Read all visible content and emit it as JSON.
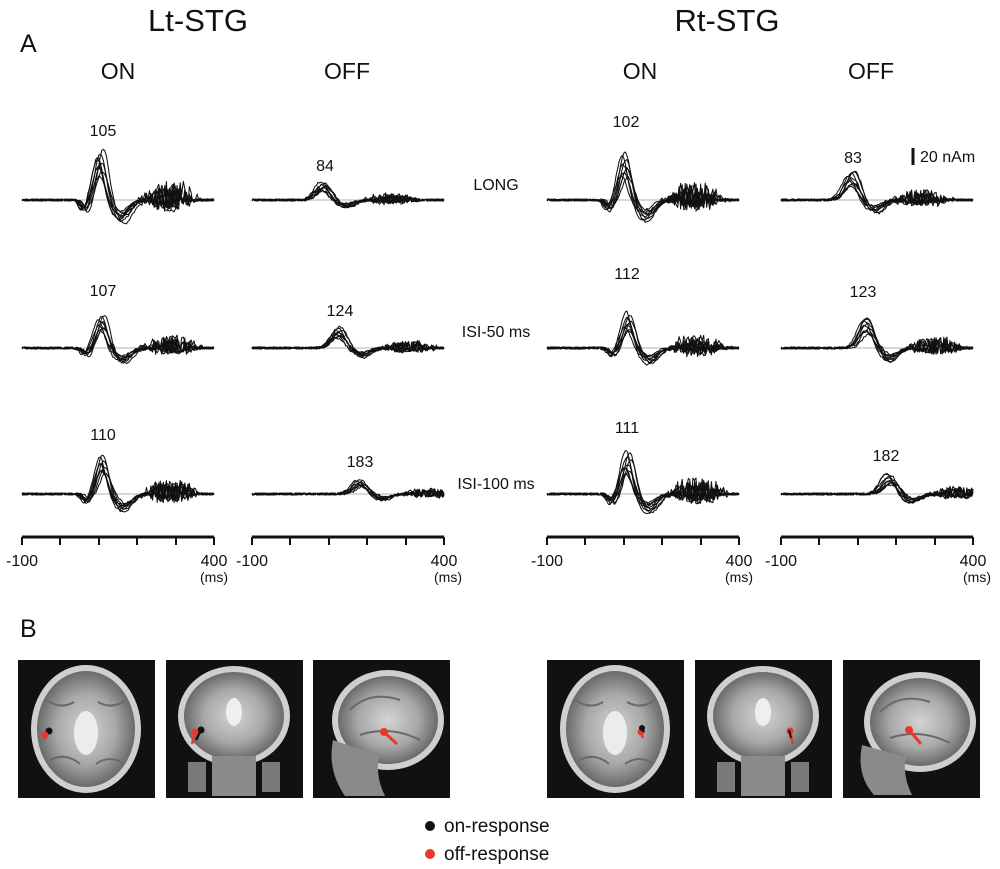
{
  "figure": {
    "panel_a_label": "A",
    "panel_b_label": "B",
    "scale_bar_label": "20 nAm",
    "axis_start_label": "-100",
    "axis_end_label": "400",
    "axis_unit_label": "(ms)",
    "conditions": [
      "LONG",
      "ISI-50 ms",
      "ISI-100 ms"
    ]
  },
  "regions": [
    {
      "title": "Lt-STG",
      "columns": [
        {
          "label": "ON",
          "type": "on",
          "peaks": [
            "105",
            "107",
            "110"
          ]
        },
        {
          "label": "OFF",
          "type": "off",
          "peaks": [
            "84",
            "124",
            "183"
          ]
        }
      ]
    },
    {
      "title": "Rt-STG",
      "columns": [
        {
          "label": "ON",
          "type": "on",
          "peaks": [
            "102",
            "112",
            "111"
          ]
        },
        {
          "label": "OFF",
          "type": "off",
          "peaks": [
            "83",
            "123",
            "182"
          ]
        }
      ]
    }
  ],
  "legend": {
    "items": [
      {
        "label": "on-response",
        "color": "#111111"
      },
      {
        "label": "off-response",
        "color": "#e8392a"
      }
    ]
  },
  "chart_data": [
    {
      "type": "line",
      "title": "Lt-STG ON",
      "xlabel": "(ms)",
      "x_range": [
        -100,
        400
      ],
      "scale_nAm": 20,
      "series": [
        {
          "name": "LONG",
          "peak_latency_ms": 105
        },
        {
          "name": "ISI-50 ms",
          "peak_latency_ms": 107
        },
        {
          "name": "ISI-100 ms",
          "peak_latency_ms": 110
        }
      ]
    },
    {
      "type": "line",
      "title": "Lt-STG OFF",
      "xlabel": "(ms)",
      "x_range": [
        -100,
        400
      ],
      "scale_nAm": 20,
      "series": [
        {
          "name": "LONG",
          "peak_latency_ms": 84
        },
        {
          "name": "ISI-50 ms",
          "peak_latency_ms": 124
        },
        {
          "name": "ISI-100 ms",
          "peak_latency_ms": 183
        }
      ]
    },
    {
      "type": "line",
      "title": "Rt-STG ON",
      "xlabel": "(ms)",
      "x_range": [
        -100,
        400
      ],
      "scale_nAm": 20,
      "series": [
        {
          "name": "LONG",
          "peak_latency_ms": 102
        },
        {
          "name": "ISI-50 ms",
          "peak_latency_ms": 112
        },
        {
          "name": "ISI-100 ms",
          "peak_latency_ms": 111
        }
      ]
    },
    {
      "type": "line",
      "title": "Rt-STG OFF",
      "xlabel": "(ms)",
      "x_range": [
        -100,
        400
      ],
      "scale_nAm": 20,
      "series": [
        {
          "name": "LONG",
          "peak_latency_ms": 83
        },
        {
          "name": "ISI-50 ms",
          "peak_latency_ms": 123
        },
        {
          "name": "ISI-100 ms",
          "peak_latency_ms": 182
        }
      ]
    }
  ]
}
